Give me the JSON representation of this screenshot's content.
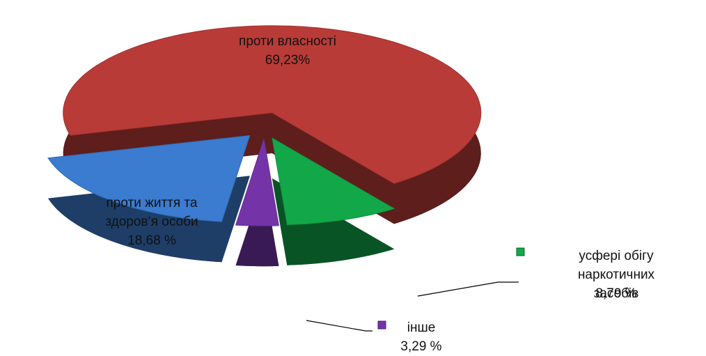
{
  "chart_data": {
    "type": "pie",
    "categories": [
      "проти власності",
      "усфері обігу\nнаркотичних засобів",
      "інше",
      "проти життя та\nздоров’я особи"
    ],
    "values": [
      69.23,
      8.79,
      3.29,
      18.68
    ],
    "value_labels": [
      "69,23%",
      "8,79 %",
      "3,29 %",
      "18,68 %"
    ],
    "colors": [
      "#b93b37",
      "#12a84a",
      "#7434a8",
      "#3b7bd0"
    ]
  }
}
